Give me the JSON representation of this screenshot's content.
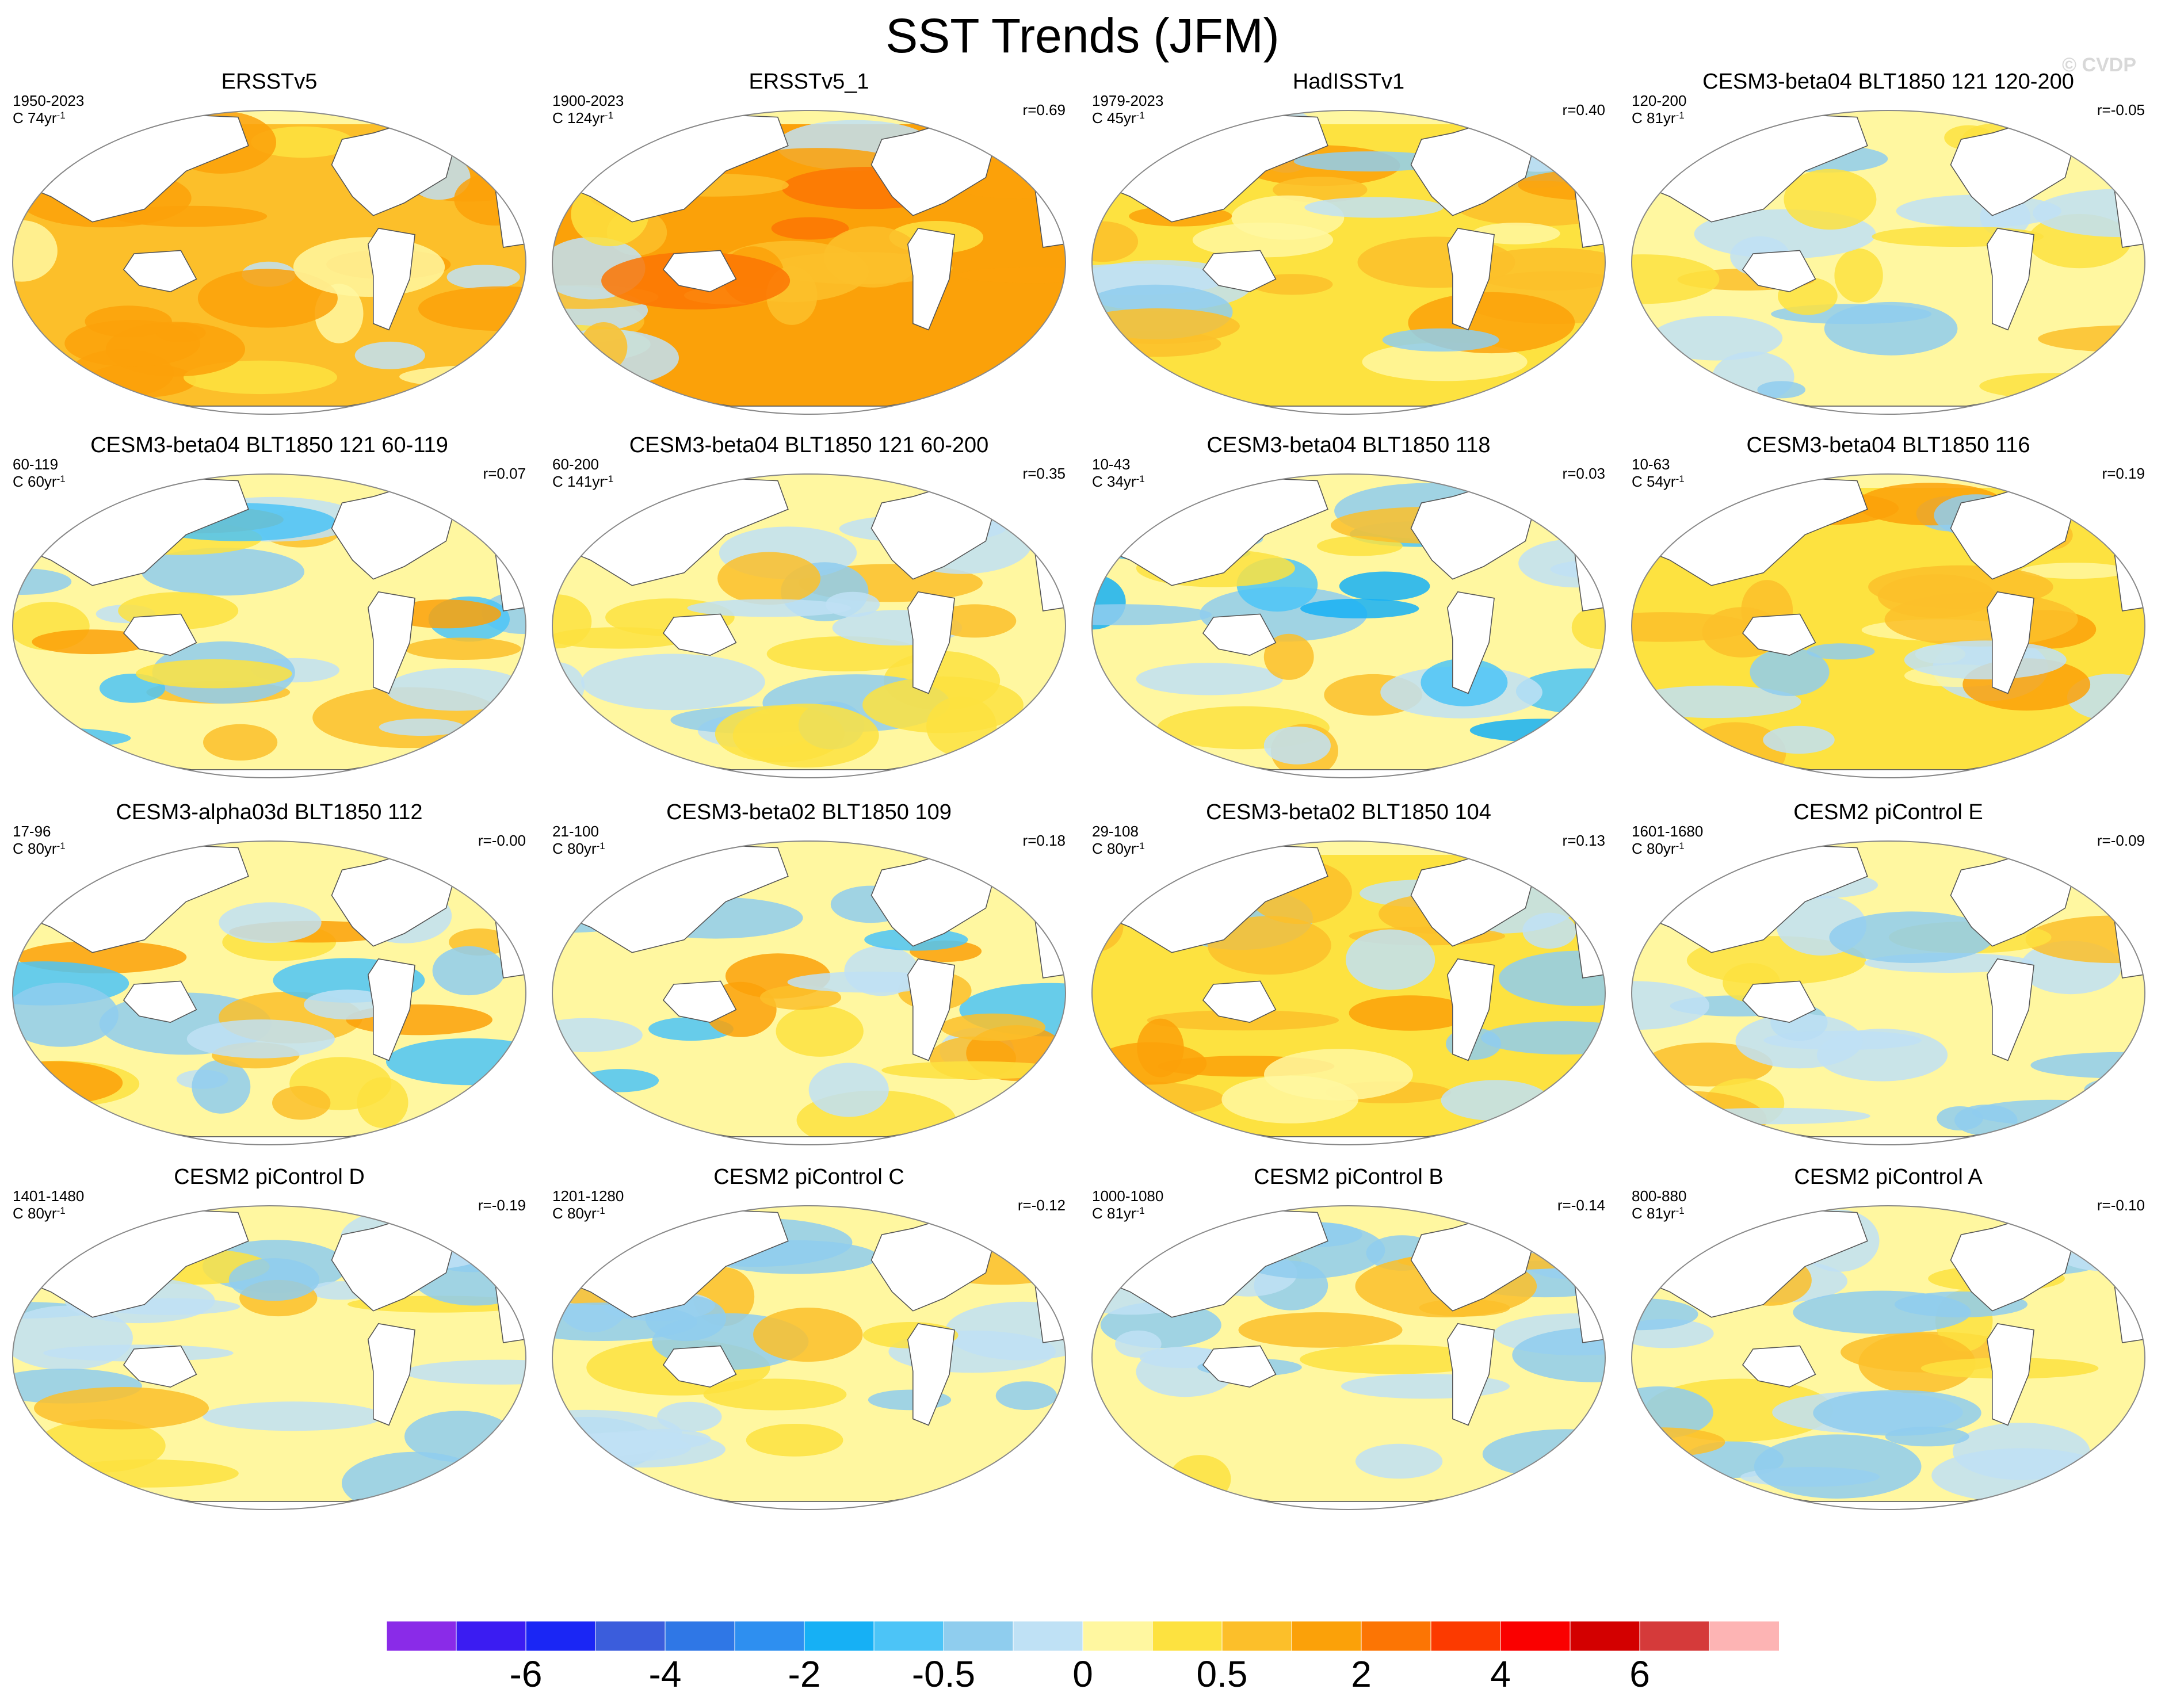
{
  "title": "SST Trends (JFM)",
  "credit": "© CVDP",
  "panels": [
    {
      "title": "ERSSTv5",
      "years": "1950-2023",
      "count": "C 74yr",
      "count_sup": "-1",
      "corr": "",
      "scheme": "warm"
    },
    {
      "title": "ERSSTv5_1",
      "years": "1900-2023",
      "count": "C 124yr",
      "count_sup": "-1",
      "corr": "r=0.69",
      "scheme": "warm2"
    },
    {
      "title": "HadISSTv1",
      "years": "1979-2023",
      "count": "C 45yr",
      "count_sup": "-1",
      "corr": "r=0.40",
      "scheme": "mixwarm"
    },
    {
      "title": "CESM3-beta04 BLT1850 121 120-200",
      "years": "120-200",
      "count": "C 81yr",
      "count_sup": "-1",
      "corr": "r=-0.05",
      "scheme": "mixpale"
    },
    {
      "title": "CESM3-beta04 BLT1850 121 60-119",
      "years": "60-119",
      "count": "C 60yr",
      "count_sup": "-1",
      "corr": "r=0.07",
      "scheme": "mix"
    },
    {
      "title": "CESM3-beta04 BLT1850 121 60-200",
      "years": "60-200",
      "count": "C 141yr",
      "count_sup": "-1",
      "corr": "r=0.35",
      "scheme": "mixpale"
    },
    {
      "title": "CESM3-beta04 BLT1850 118",
      "years": "10-43",
      "count": "C 34yr",
      "count_sup": "-1",
      "corr": "r=0.03",
      "scheme": "mixcool"
    },
    {
      "title": "CESM3-beta04 BLT1850 116",
      "years": "10-63",
      "count": "C 54yr",
      "count_sup": "-1",
      "corr": "r=0.19",
      "scheme": "mixwarm"
    },
    {
      "title": "CESM3-alpha03d BLT1850 112",
      "years": "17-96",
      "count": "C 80yr",
      "count_sup": "-1",
      "corr": "r=-0.00",
      "scheme": "mix"
    },
    {
      "title": "CESM3-beta02 BLT1850 109",
      "years": "21-100",
      "count": "C 80yr",
      "count_sup": "-1",
      "corr": "r=0.18",
      "scheme": "mix"
    },
    {
      "title": "CESM3-beta02 BLT1850 104",
      "years": "29-108",
      "count": "C 80yr",
      "count_sup": "-1",
      "corr": "r=0.13",
      "scheme": "mixwarm"
    },
    {
      "title": "CESM2 piControl E",
      "years": "1601-1680",
      "count": "C 80yr",
      "count_sup": "-1",
      "corr": "r=-0.09",
      "scheme": "pale"
    },
    {
      "title": "CESM2 piControl D",
      "years": "1401-1480",
      "count": "C 80yr",
      "count_sup": "-1",
      "corr": "r=-0.19",
      "scheme": "pale"
    },
    {
      "title": "CESM2 piControl C",
      "years": "1201-1280",
      "count": "C 80yr",
      "count_sup": "-1",
      "corr": "r=-0.12",
      "scheme": "pale"
    },
    {
      "title": "CESM2 piControl B",
      "years": "1000-1080",
      "count": "C 81yr",
      "count_sup": "-1",
      "corr": "r=-0.14",
      "scheme": "pale"
    },
    {
      "title": "CESM2 piControl A",
      "years": "800-880",
      "count": "C 81yr",
      "count_sup": "-1",
      "corr": "r=-0.10",
      "scheme": "pale"
    }
  ],
  "colorbar": {
    "colors": [
      "#8a2be8",
      "#3b1cf2",
      "#1a26f5",
      "#3b5ddc",
      "#2f77e6",
      "#2e8ff0",
      "#16b0f5",
      "#4cc4f7",
      "#8fcdee",
      "#bfe1f5",
      "#fff7a0",
      "#fde240",
      "#fcbf2a",
      "#fba109",
      "#fc7504",
      "#fc3a00",
      "#fa0000",
      "#d30000",
      "#d53a3a",
      "#fdb4b4"
    ],
    "tick_labels": [
      "-6",
      "-4",
      "-2",
      "-0.5",
      "0",
      "0.5",
      "2",
      "4",
      "6"
    ],
    "tick_boundaries": [
      2,
      4,
      6,
      8,
      10,
      12,
      14,
      16,
      18
    ]
  }
}
